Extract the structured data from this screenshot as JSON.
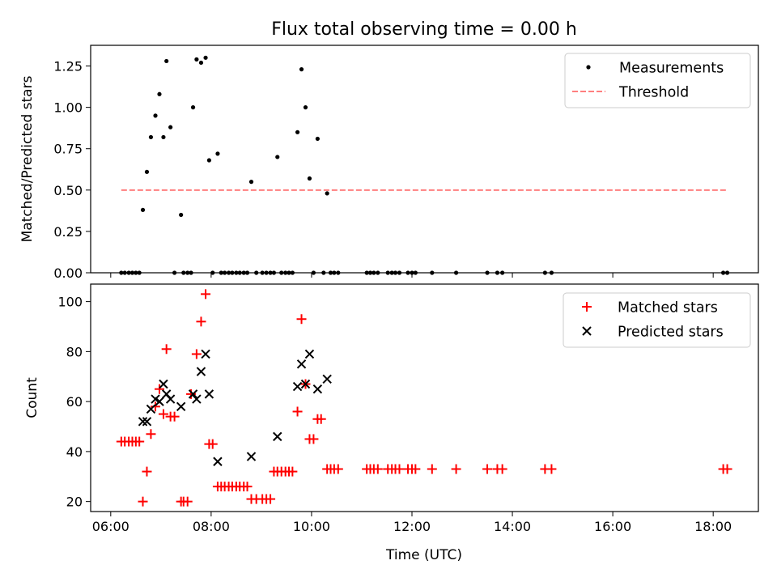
{
  "chart_data": [
    {
      "type": "scatter",
      "title": "Flux total observing time = 0.00 h",
      "xlabel": "",
      "ylabel": "Matched/Predicted stars",
      "xlim": [
        5.6,
        18.9
      ],
      "ylim": [
        0,
        1.375
      ],
      "xticks": [
        6,
        8,
        10,
        12,
        14,
        16,
        18
      ],
      "yticks": [
        0,
        0.25,
        0.5,
        0.75,
        1.0,
        1.25
      ],
      "ytick_labels": [
        "0.00",
        "0.25",
        "0.50",
        "0.75",
        "1.00",
        "1.25"
      ],
      "legend_position": "upper right",
      "series": [
        {
          "name": "Measurements",
          "marker": "dot",
          "color": "#000000",
          "points": [
            [
              6.21,
              0
            ],
            [
              6.28,
              0
            ],
            [
              6.36,
              0
            ],
            [
              6.43,
              0
            ],
            [
              6.5,
              0
            ],
            [
              6.57,
              0
            ],
            [
              6.64,
              0.38
            ],
            [
              6.72,
              0.61
            ],
            [
              6.8,
              0.82
            ],
            [
              6.89,
              0.95
            ],
            [
              6.97,
              1.08
            ],
            [
              7.05,
              0.82
            ],
            [
              7.11,
              1.28
            ],
            [
              7.19,
              0.88
            ],
            [
              7.27,
              0
            ],
            [
              7.4,
              0.35
            ],
            [
              7.45,
              0
            ],
            [
              7.53,
              0
            ],
            [
              7.6,
              0
            ],
            [
              7.64,
              1.0
            ],
            [
              7.71,
              1.29
            ],
            [
              7.8,
              1.27
            ],
            [
              7.89,
              1.3
            ],
            [
              7.96,
              0.68
            ],
            [
              8.03,
              0
            ],
            [
              8.13,
              0.72
            ],
            [
              8.2,
              0
            ],
            [
              8.27,
              0
            ],
            [
              8.35,
              0
            ],
            [
              8.42,
              0
            ],
            [
              8.5,
              0
            ],
            [
              8.57,
              0
            ],
            [
              8.65,
              0
            ],
            [
              8.72,
              0
            ],
            [
              8.8,
              0.55
            ],
            [
              8.9,
              0
            ],
            [
              9.02,
              0
            ],
            [
              9.1,
              0
            ],
            [
              9.18,
              0
            ],
            [
              9.25,
              0
            ],
            [
              9.32,
              0.7
            ],
            [
              9.4,
              0
            ],
            [
              9.48,
              0
            ],
            [
              9.55,
              0
            ],
            [
              9.62,
              0
            ],
            [
              9.72,
              0.85
            ],
            [
              9.8,
              1.23
            ],
            [
              9.88,
              1.0
            ],
            [
              9.96,
              0.57
            ],
            [
              10.04,
              0
            ],
            [
              10.12,
              0.81
            ],
            [
              10.24,
              0
            ],
            [
              10.31,
              0.48
            ],
            [
              10.38,
              0
            ],
            [
              10.45,
              0
            ],
            [
              10.53,
              0
            ],
            [
              11.1,
              0
            ],
            [
              11.17,
              0
            ],
            [
              11.24,
              0
            ],
            [
              11.32,
              0
            ],
            [
              11.52,
              0
            ],
            [
              11.6,
              0
            ],
            [
              11.67,
              0
            ],
            [
              11.75,
              0
            ],
            [
              11.92,
              0
            ],
            [
              12.0,
              0
            ],
            [
              12.07,
              0
            ],
            [
              12.4,
              0
            ],
            [
              12.88,
              0
            ],
            [
              13.5,
              0
            ],
            [
              13.7,
              0
            ],
            [
              13.8,
              0
            ],
            [
              14.65,
              0
            ],
            [
              14.78,
              0
            ],
            [
              18.2,
              0
            ],
            [
              18.28,
              0
            ]
          ]
        },
        {
          "name": "Threshold",
          "type": "line",
          "style": "dashed",
          "color": "#ff7f7f",
          "points": [
            [
              6.21,
              0.5
            ],
            [
              18.3,
              0.5
            ]
          ]
        }
      ]
    },
    {
      "type": "scatter",
      "title": "",
      "xlabel": "Time (UTC)",
      "ylabel": "Count",
      "xlim": [
        5.6,
        18.9
      ],
      "ylim": [
        16,
        107
      ],
      "xticks": [
        6,
        8,
        10,
        12,
        14,
        16,
        18
      ],
      "xtick_labels": [
        "06:00",
        "08:00",
        "10:00",
        "12:00",
        "14:00",
        "16:00",
        "18:00"
      ],
      "yticks": [
        20,
        40,
        60,
        80,
        100
      ],
      "ytick_labels": [
        "20",
        "40",
        "60",
        "80",
        "100"
      ],
      "legend_position": "upper right",
      "series": [
        {
          "name": "Matched stars",
          "marker": "plus",
          "color": "#ff0000",
          "points": [
            [
              6.21,
              44
            ],
            [
              6.28,
              44
            ],
            [
              6.36,
              44
            ],
            [
              6.43,
              44
            ],
            [
              6.5,
              44
            ],
            [
              6.57,
              44
            ],
            [
              6.64,
              20
            ],
            [
              6.72,
              32
            ],
            [
              6.8,
              47
            ],
            [
              6.89,
              58
            ],
            [
              6.97,
              65
            ],
            [
              7.05,
              55
            ],
            [
              7.11,
              81
            ],
            [
              7.19,
              54
            ],
            [
              7.27,
              54
            ],
            [
              7.4,
              20
            ],
            [
              7.45,
              20
            ],
            [
              7.53,
              20
            ],
            [
              7.6,
              63
            ],
            [
              7.71,
              79
            ],
            [
              7.8,
              92
            ],
            [
              7.89,
              103
            ],
            [
              7.96,
              43
            ],
            [
              8.03,
              43
            ],
            [
              8.13,
              26
            ],
            [
              8.2,
              26
            ],
            [
              8.27,
              26
            ],
            [
              8.35,
              26
            ],
            [
              8.42,
              26
            ],
            [
              8.5,
              26
            ],
            [
              8.57,
              26
            ],
            [
              8.65,
              26
            ],
            [
              8.72,
              26
            ],
            [
              8.8,
              21
            ],
            [
              8.9,
              21
            ],
            [
              9.02,
              21
            ],
            [
              9.1,
              21
            ],
            [
              9.18,
              21
            ],
            [
              9.25,
              32
            ],
            [
              9.32,
              32
            ],
            [
              9.4,
              32
            ],
            [
              9.48,
              32
            ],
            [
              9.55,
              32
            ],
            [
              9.62,
              32
            ],
            [
              9.72,
              56
            ],
            [
              9.8,
              93
            ],
            [
              9.88,
              67
            ],
            [
              9.96,
              45
            ],
            [
              10.04,
              45
            ],
            [
              10.12,
              53
            ],
            [
              10.19,
              53
            ],
            [
              10.31,
              33
            ],
            [
              10.38,
              33
            ],
            [
              10.45,
              33
            ],
            [
              10.53,
              33
            ],
            [
              11.1,
              33
            ],
            [
              11.17,
              33
            ],
            [
              11.24,
              33
            ],
            [
              11.32,
              33
            ],
            [
              11.52,
              33
            ],
            [
              11.6,
              33
            ],
            [
              11.67,
              33
            ],
            [
              11.75,
              33
            ],
            [
              11.92,
              33
            ],
            [
              12.0,
              33
            ],
            [
              12.07,
              33
            ],
            [
              12.4,
              33
            ],
            [
              12.88,
              33
            ],
            [
              13.5,
              33
            ],
            [
              13.7,
              33
            ],
            [
              13.8,
              33
            ],
            [
              14.65,
              33
            ],
            [
              14.78,
              33
            ],
            [
              18.2,
              33
            ],
            [
              18.28,
              33
            ]
          ]
        },
        {
          "name": "Predicted stars",
          "marker": "x",
          "color": "#000000",
          "points": [
            [
              6.64,
              52
            ],
            [
              6.72,
              52
            ],
            [
              6.8,
              57
            ],
            [
              6.89,
              61
            ],
            [
              6.97,
              60
            ],
            [
              7.05,
              67
            ],
            [
              7.11,
              63
            ],
            [
              7.19,
              61
            ],
            [
              7.4,
              58
            ],
            [
              7.64,
              63
            ],
            [
              7.71,
              61
            ],
            [
              7.8,
              72
            ],
            [
              7.89,
              79
            ],
            [
              7.96,
              63
            ],
            [
              8.13,
              36
            ],
            [
              8.8,
              38
            ],
            [
              9.32,
              46
            ],
            [
              9.72,
              66
            ],
            [
              9.8,
              75
            ],
            [
              9.88,
              67
            ],
            [
              9.96,
              79
            ],
            [
              10.12,
              65
            ],
            [
              10.31,
              69
            ]
          ]
        }
      ]
    }
  ]
}
